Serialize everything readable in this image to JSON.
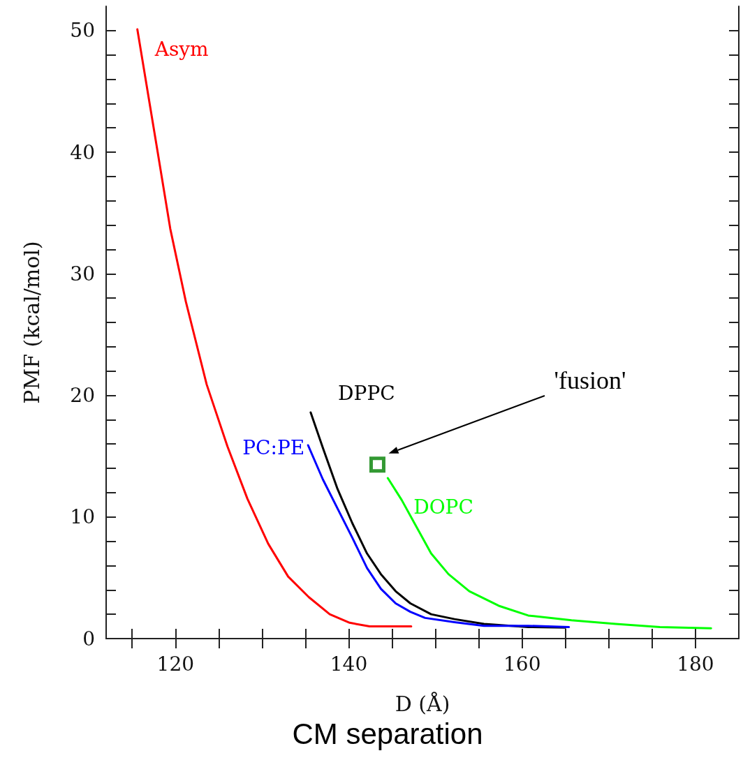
{
  "chart_data": {
    "type": "line",
    "xlabel": "D (Å)",
    "ylabel": "PMF (kcal/mol)",
    "xlim": [
      112,
      185
    ],
    "ylim": [
      0,
      52
    ],
    "xticks": [
      {
        "value": 115,
        "label": null
      },
      120,
      {
        "value": 125,
        "label": null
      },
      {
        "value": 130,
        "label": null
      },
      {
        "value": 135,
        "label": null
      },
      140,
      {
        "value": 145,
        "label": null
      },
      {
        "value": 150,
        "label": null
      },
      {
        "value": 155,
        "label": null
      },
      160,
      {
        "value": 165,
        "label": null
      },
      {
        "value": 170,
        "label": null
      },
      {
        "value": 175,
        "label": null
      },
      180
    ],
    "yticks": [
      0,
      {
        "value": 2,
        "label": null
      },
      {
        "value": 4,
        "label": null
      },
      {
        "value": 6,
        "label": null
      },
      {
        "value": 8,
        "label": null
      },
      10,
      {
        "value": 12,
        "label": null
      },
      {
        "value": 14,
        "label": null
      },
      {
        "value": 16,
        "label": null
      },
      {
        "value": 18,
        "label": null
      },
      20,
      {
        "value": 22,
        "label": null
      },
      {
        "value": 24,
        "label": null
      },
      {
        "value": 26,
        "label": null
      },
      {
        "value": 28,
        "label": null
      },
      30,
      {
        "value": 32,
        "label": null
      },
      {
        "value": 34,
        "label": null
      },
      {
        "value": 36,
        "label": null
      },
      {
        "value": 38,
        "label": null
      },
      40,
      {
        "value": 42,
        "label": null
      },
      {
        "value": 44,
        "label": null
      },
      {
        "value": 46,
        "label": null
      },
      {
        "value": 48,
        "label": null
      },
      50
    ],
    "grid": false,
    "legend": false,
    "marker": "none",
    "line_style": "solid",
    "series": [
      {
        "name": "Asym",
        "color": "#ff0000",
        "x": [
          115.6,
          117.9,
          119.4,
          121.2,
          123.6,
          126.0,
          128.3,
          130.7,
          133.0,
          135.4,
          137.8,
          140.1,
          142.4,
          147.2
        ],
        "values": [
          50.1,
          40.2,
          33.7,
          27.7,
          20.9,
          15.8,
          11.5,
          7.8,
          5.1,
          3.4,
          2.0,
          1.3,
          1.0,
          1.0
        ]
      },
      {
        "name": "DPPC",
        "color": "#000000",
        "x": [
          135.6,
          137.0,
          138.7,
          140.4,
          142.1,
          143.7,
          145.4,
          147.1,
          149.5,
          152.2,
          155.6,
          160.7,
          165.0
        ],
        "values": [
          18.6,
          15.7,
          12.3,
          9.5,
          7.0,
          5.3,
          3.9,
          2.9,
          2.0,
          1.6,
          1.2,
          0.95,
          0.9
        ]
      },
      {
        "name": "PC:PE",
        "color": "#0000ff",
        "x": [
          135.3,
          137.0,
          138.7,
          140.4,
          142.1,
          143.7,
          145.4,
          147.1,
          148.8,
          152.2,
          155.6,
          160.7,
          165.4
        ],
        "values": [
          15.9,
          13.1,
          10.7,
          8.3,
          5.8,
          4.1,
          2.9,
          2.2,
          1.7,
          1.35,
          1.05,
          1.05,
          0.95
        ]
      },
      {
        "name": "DOPC",
        "color": "#00ff00",
        "x": [
          144.5,
          146.1,
          147.8,
          149.5,
          151.5,
          153.9,
          157.3,
          160.7,
          165.7,
          170.8,
          175.9,
          181.8
        ],
        "values": [
          13.2,
          11.4,
          9.2,
          7.0,
          5.3,
          3.9,
          2.7,
          1.9,
          1.5,
          1.2,
          0.95,
          0.85
        ]
      },
      {
        "type": "scatter",
        "marker": "square",
        "color": "#008000",
        "x": [
          143.3
        ],
        "values": [
          14.3
        ]
      }
    ],
    "annotations": [
      "'fusion'",
      "CM separation"
    ]
  }
}
